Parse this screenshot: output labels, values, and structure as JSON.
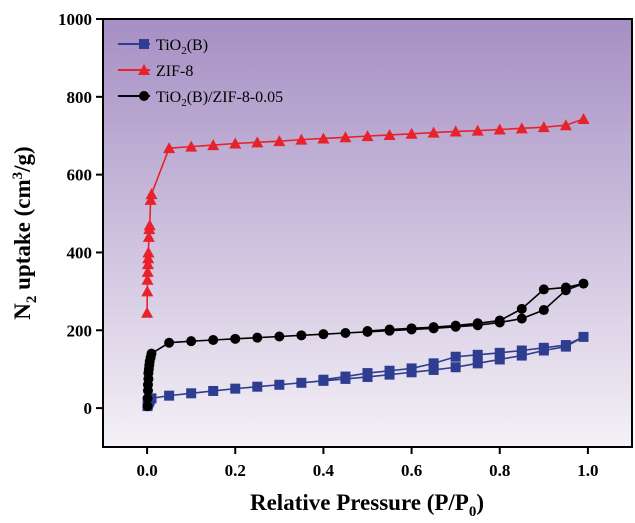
{
  "chart_data": {
    "type": "line",
    "xlabel": {
      "main": "Relative Pressure (P/P",
      "sub": "0",
      "tail": ")"
    },
    "ylabel": {
      "pre": "N",
      "sub": "2",
      "mid": " uptake (cm",
      "sup": "3",
      "tail": "/g)"
    },
    "xlim": [
      -0.1,
      1.1
    ],
    "ylim": [
      -100,
      1000
    ],
    "xticks": [
      0.0,
      0.2,
      0.4,
      0.6,
      0.8,
      1.0
    ],
    "xtick_labels": [
      "0.0",
      "0.2",
      "0.4",
      "0.6",
      "0.8",
      "1.0"
    ],
    "yticks": [
      0,
      200,
      400,
      600,
      800,
      1000
    ],
    "ytick_labels": [
      "0",
      "200",
      "400",
      "600",
      "800",
      "1000"
    ],
    "grid": false,
    "legend_position": "top-left",
    "background": {
      "top": "#a68fc4",
      "bottom": "#f4f1f7"
    },
    "series": [
      {
        "name": "TiO2(B)",
        "legend": {
          "pre": "TiO",
          "sub": "2",
          "post": "(B)"
        },
        "color": "#2e3d8f",
        "marker": "square",
        "x": [
          0.001,
          0.002,
          0.004,
          0.006,
          0.01,
          0.05,
          0.1,
          0.15,
          0.2,
          0.25,
          0.3,
          0.35,
          0.4,
          0.45,
          0.5,
          0.55,
          0.6,
          0.65,
          0.7,
          0.75,
          0.8,
          0.85,
          0.9,
          0.95,
          0.99,
          0.95,
          0.9,
          0.85,
          0.8,
          0.75,
          0.7,
          0.65,
          0.6,
          0.55,
          0.5,
          0.45,
          0.4
        ],
        "y": [
          5,
          10,
          15,
          20,
          25,
          32,
          38,
          44,
          50,
          55,
          60,
          65,
          70,
          75,
          80,
          86,
          92,
          98,
          105,
          115,
          125,
          135,
          148,
          158,
          183,
          162,
          155,
          148,
          142,
          137,
          132,
          115,
          102,
          96,
          90,
          81,
          73
        ]
      },
      {
        "name": "ZIF-8",
        "legend": {
          "pre": "ZIF-8",
          "sub": "",
          "post": ""
        },
        "color": "#e8222a",
        "marker": "triangle",
        "x": [
          0.0,
          0.0005,
          0.001,
          0.0015,
          0.002,
          0.0025,
          0.003,
          0.004,
          0.005,
          0.006,
          0.008,
          0.01,
          0.05,
          0.1,
          0.15,
          0.2,
          0.25,
          0.3,
          0.35,
          0.4,
          0.45,
          0.5,
          0.55,
          0.6,
          0.65,
          0.7,
          0.75,
          0.8,
          0.85,
          0.9,
          0.95,
          0.99
        ],
        "y": [
          245,
          300,
          330,
          350,
          370,
          385,
          400,
          440,
          460,
          470,
          535,
          550,
          668,
          672,
          676,
          680,
          683,
          686,
          690,
          693,
          696,
          699,
          702,
          705,
          708,
          711,
          713,
          716,
          719,
          722,
          727,
          743
        ]
      },
      {
        "name": "TiO2(B)/ZIF-8-0.05",
        "legend": {
          "pre": "TiO",
          "sub": "2",
          "post": "(B)/ZIF-8-0.05"
        },
        "color": "#000000",
        "marker": "circle",
        "x": [
          0.001,
          0.001,
          0.002,
          0.002,
          0.003,
          0.003,
          0.004,
          0.005,
          0.006,
          0.008,
          0.01,
          0.05,
          0.1,
          0.15,
          0.2,
          0.25,
          0.3,
          0.35,
          0.4,
          0.45,
          0.5,
          0.55,
          0.6,
          0.65,
          0.7,
          0.75,
          0.8,
          0.85,
          0.9,
          0.95,
          0.99,
          0.95,
          0.9,
          0.85,
          0.8,
          0.75,
          0.7,
          0.65,
          0.6,
          0.55,
          0.5
        ],
        "y": [
          5,
          25,
          45,
          60,
          75,
          90,
          100,
          110,
          120,
          130,
          140,
          168,
          172,
          175,
          178,
          181,
          184,
          187,
          190,
          193,
          196,
          199,
          202,
          205,
          209,
          213,
          220,
          230,
          252,
          303,
          320,
          310,
          305,
          255,
          225,
          218,
          212,
          208,
          205,
          202,
          198
        ]
      }
    ]
  }
}
